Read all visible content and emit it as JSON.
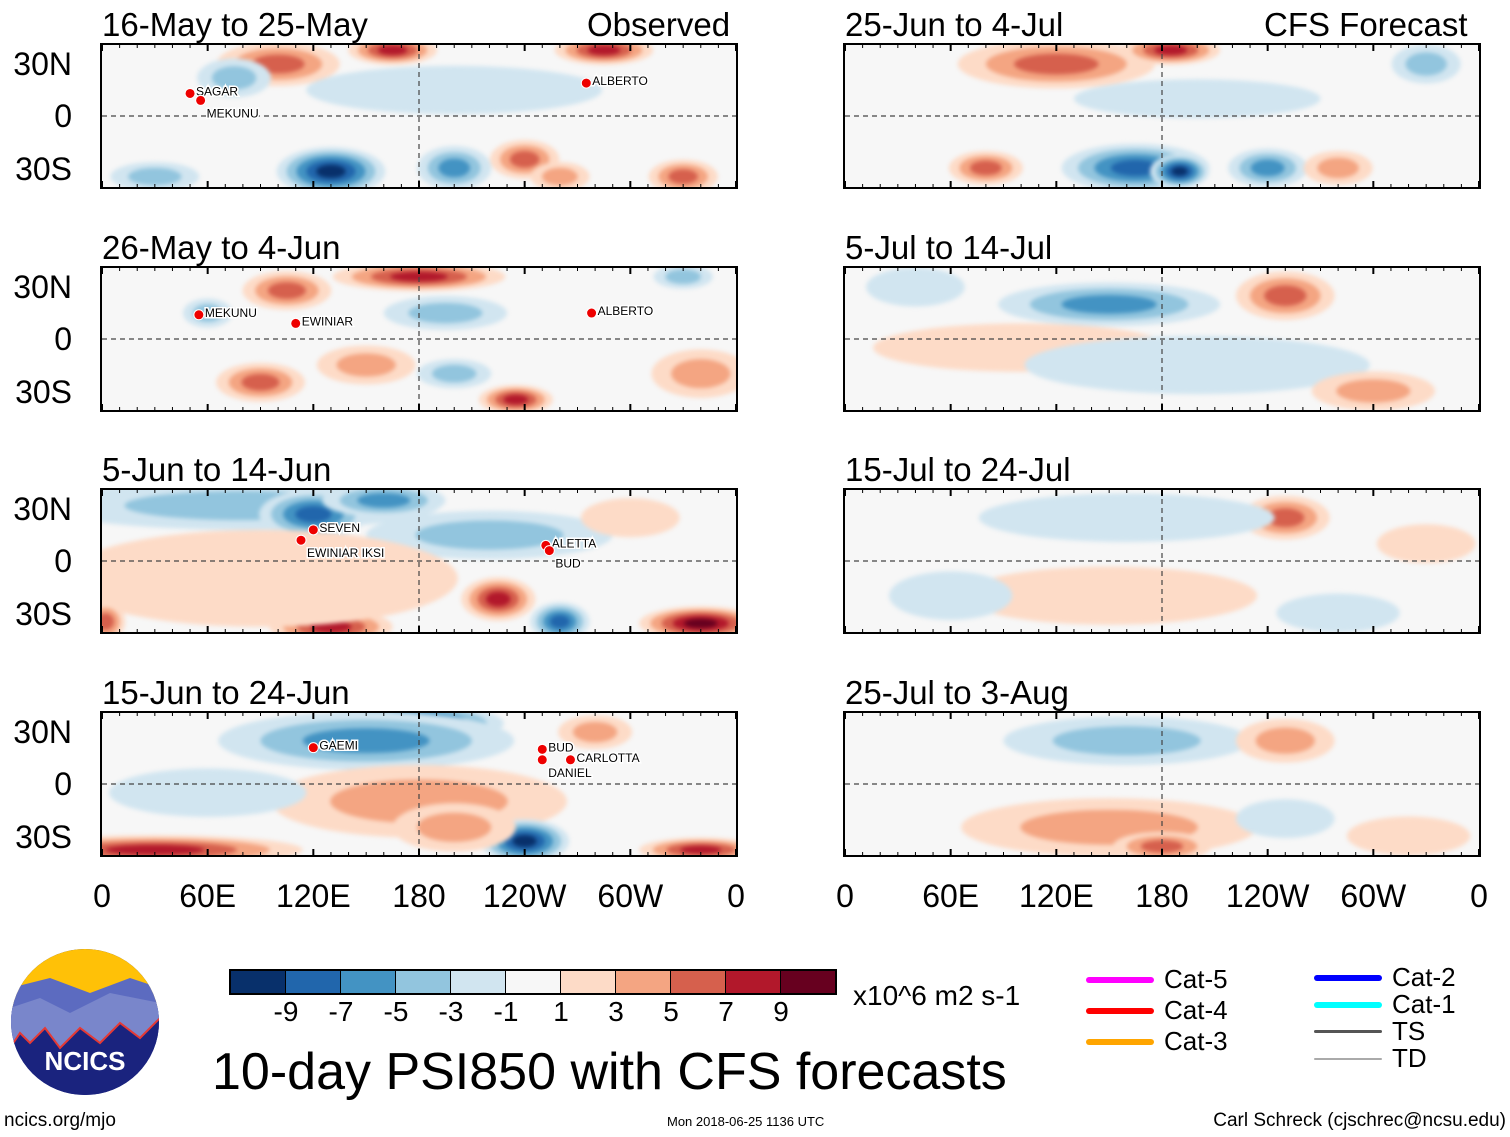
{
  "headers": {
    "observed": "Observed",
    "forecast": "CFS Forecast"
  },
  "lat_labels": [
    "30N",
    "0",
    "30S"
  ],
  "lon_labels": [
    "0",
    "60E",
    "120E",
    "180",
    "120W",
    "60W",
    "0"
  ],
  "panels": [
    {
      "title": "16-May to 25-May",
      "side": "left",
      "row": 0,
      "blobs": [
        [
          100,
          30,
          5,
          25,
          9
        ],
        [
          165,
          38,
          7,
          18,
          6
        ],
        [
          285,
          38,
          7,
          20,
          6
        ],
        [
          130,
          -32,
          -9,
          22,
          10
        ],
        [
          200,
          -30,
          -5,
          15,
          9
        ],
        [
          240,
          -25,
          5,
          14,
          8
        ],
        [
          75,
          22,
          -3,
          15,
          8
        ],
        [
          330,
          -35,
          5,
          14,
          7
        ],
        [
          30,
          -35,
          -3,
          18,
          6
        ],
        [
          200,
          15,
          -1,
          60,
          10
        ],
        [
          260,
          -35,
          3,
          12,
          6
        ]
      ],
      "storms": [
        {
          "name": "SAGAR",
          "lon": 50,
          "lat": 13
        },
        {
          "name": "MEKUNU",
          "lon": 56,
          "lat": 9
        },
        {
          "name": "ALBERTO",
          "lon": 275,
          "lat": 19
        }
      ]
    },
    {
      "title": "26-May to 4-Jun",
      "side": "left",
      "row": 1,
      "blobs": [
        [
          180,
          36,
          7,
          35,
          6
        ],
        [
          105,
          28,
          5,
          18,
          8
        ],
        [
          195,
          15,
          -3,
          25,
          7
        ],
        [
          150,
          -15,
          3,
          20,
          8
        ],
        [
          235,
          -35,
          7,
          15,
          6
        ],
        [
          200,
          -20,
          -3,
          15,
          6
        ],
        [
          90,
          -25,
          5,
          18,
          8
        ],
        [
          330,
          36,
          -3,
          12,
          5
        ],
        [
          340,
          -20,
          3,
          20,
          10
        ],
        [
          60,
          15,
          -3,
          10,
          6
        ]
      ],
      "storms": [
        {
          "name": "MEKUNU",
          "lon": 55,
          "lat": 14
        },
        {
          "name": "EWINIAR",
          "lon": 110,
          "lat": 9
        },
        {
          "name": "ALBERTO",
          "lon": 278,
          "lat": 15
        }
      ]
    },
    {
      "title": "5-Jun to 14-Jun",
      "side": "left",
      "row": 2,
      "blobs": [
        [
          80,
          32,
          -3,
          80,
          10
        ],
        [
          120,
          27,
          -7,
          22,
          10
        ],
        [
          160,
          35,
          -5,
          25,
          7
        ],
        [
          220,
          15,
          -3,
          50,
          10
        ],
        [
          225,
          -22,
          7,
          15,
          9
        ],
        [
          260,
          -35,
          -7,
          12,
          8
        ],
        [
          340,
          -36,
          9,
          25,
          7
        ],
        [
          130,
          -38,
          7,
          25,
          7
        ],
        [
          90,
          -10,
          1,
          80,
          20
        ],
        [
          2,
          -35,
          5,
          8,
          8
        ],
        [
          300,
          25,
          1,
          20,
          8
        ]
      ],
      "storms": [
        {
          "name": "SEVEN",
          "lon": 120,
          "lat": 18
        },
        {
          "name": "EWINIAR IKSI",
          "lon": 113,
          "lat": 12
        },
        {
          "name": "ALETTA",
          "lon": 252,
          "lat": 9
        },
        {
          "name": "BUD",
          "lon": 254,
          "lat": 6
        }
      ]
    },
    {
      "title": "15-Jun to 24-Jun",
      "side": "left",
      "row": 3,
      "blobs": [
        [
          175,
          35,
          -9,
          38,
          8
        ],
        [
          150,
          25,
          -5,
          60,
          12
        ],
        [
          180,
          -10,
          3,
          60,
          15
        ],
        [
          240,
          -33,
          -9,
          18,
          9
        ],
        [
          30,
          -38,
          7,
          60,
          6
        ],
        [
          340,
          -38,
          7,
          25,
          5
        ],
        [
          60,
          -5,
          -1,
          40,
          10
        ],
        [
          280,
          30,
          3,
          15,
          7
        ],
        [
          200,
          -25,
          3,
          25,
          10
        ]
      ],
      "storms": [
        {
          "name": "GAEMI",
          "lon": 120,
          "lat": 21
        },
        {
          "name": "BUD",
          "lon": 250,
          "lat": 20
        },
        {
          "name": "DANIEL",
          "lon": 250,
          "lat": 14
        },
        {
          "name": "CARLOTTA",
          "lon": 266,
          "lat": 14
        }
      ]
    },
    {
      "title": "25-Jun to 4-Jul",
      "side": "right",
      "row": 0,
      "blobs": [
        [
          120,
          30,
          5,
          40,
          10
        ],
        [
          185,
          38,
          7,
          20,
          6
        ],
        [
          165,
          -30,
          -7,
          30,
          10
        ],
        [
          190,
          -32,
          -9,
          12,
          7
        ],
        [
          80,
          -30,
          5,
          15,
          7
        ],
        [
          240,
          -30,
          -5,
          16,
          8
        ],
        [
          280,
          -30,
          3,
          14,
          7
        ],
        [
          330,
          30,
          -3,
          14,
          8
        ],
        [
          200,
          10,
          -1,
          50,
          8
        ]
      ],
      "storms": []
    },
    {
      "title": "5-Jul to 14-Jul",
      "side": "right",
      "row": 1,
      "blobs": [
        [
          150,
          20,
          -5,
          45,
          9
        ],
        [
          250,
          25,
          5,
          20,
          10
        ],
        [
          100,
          -5,
          1,
          60,
          10
        ],
        [
          200,
          -15,
          -1,
          70,
          12
        ],
        [
          300,
          -30,
          3,
          25,
          8
        ],
        [
          40,
          30,
          -1,
          20,
          8
        ]
      ],
      "storms": []
    },
    {
      "title": "15-Jul to 24-Jul",
      "side": "right",
      "row": 2,
      "blobs": [
        [
          250,
          25,
          5,
          18,
          9
        ],
        [
          160,
          25,
          -1,
          60,
          10
        ],
        [
          150,
          -20,
          1,
          60,
          12
        ],
        [
          280,
          -30,
          -1,
          25,
          8
        ],
        [
          60,
          -20,
          -1,
          25,
          10
        ],
        [
          330,
          10,
          1,
          20,
          8
        ]
      ],
      "storms": []
    },
    {
      "title": "25-Jul to 3-Aug",
      "side": "right",
      "row": 3,
      "blobs": [
        [
          160,
          25,
          -3,
          50,
          10
        ],
        [
          250,
          25,
          3,
          20,
          9
        ],
        [
          150,
          -25,
          3,
          60,
          12
        ],
        [
          180,
          -36,
          5,
          20,
          6
        ],
        [
          250,
          -20,
          -1,
          20,
          8
        ],
        [
          320,
          -30,
          1,
          25,
          8
        ]
      ],
      "storms": []
    }
  ],
  "colorbar": {
    "colors": [
      "#08306b",
      "#2166ac",
      "#4393c3",
      "#92c5de",
      "#d1e5f0",
      "#f7f7f7",
      "#fddbc7",
      "#f4a582",
      "#d6604d",
      "#b2182b",
      "#67001f"
    ],
    "labels": [
      "-9",
      "-7",
      "-5",
      "-3",
      "-1",
      "1",
      "3",
      "5",
      "7",
      "9"
    ],
    "units": "x10^6 m2 s-1"
  },
  "legend": [
    {
      "label": "Cat-5",
      "color": "#ff00ff"
    },
    {
      "label": "Cat-4",
      "color": "#ff0000"
    },
    {
      "label": "Cat-3",
      "color": "#ffa500"
    },
    {
      "label": "Cat-2",
      "color": "#0000ff"
    },
    {
      "label": "Cat-1",
      "color": "#00ffff"
    },
    {
      "label": "TS",
      "color": "#555555"
    },
    {
      "label": "TD",
      "color": "#aaaaaa"
    }
  ],
  "title": "10-day PSI850 with CFS forecasts",
  "logo": "NCICS",
  "footer": {
    "url": "ncics.org/mjo",
    "timestamp": "Mon 2018-06-25 1136 UTC",
    "author": "Carl Schreck (cjschrec@ncsu.edu)"
  }
}
